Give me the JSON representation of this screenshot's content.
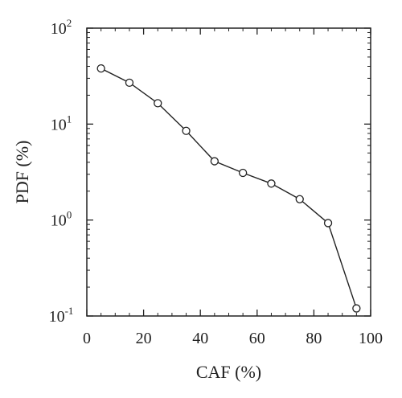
{
  "chart_data": {
    "type": "line",
    "title": "",
    "xlabel": "CAF (%)",
    "ylabel": "PDF (%)",
    "xlim": [
      0,
      100
    ],
    "ylim": [
      0.1,
      100
    ],
    "yscale": "log",
    "grid": false,
    "x_ticks": [
      {
        "value": 0,
        "label": "0"
      },
      {
        "value": 20,
        "label": "20"
      },
      {
        "value": 40,
        "label": "40"
      },
      {
        "value": 60,
        "label": "60"
      },
      {
        "value": 80,
        "label": "80"
      },
      {
        "value": 100,
        "label": "100"
      }
    ],
    "y_ticks": [
      {
        "value": 0.1,
        "base": "10",
        "exponent": "-1"
      },
      {
        "value": 1,
        "base": "10",
        "exponent": "0"
      },
      {
        "value": 10,
        "base": "10",
        "exponent": "1"
      },
      {
        "value": 100,
        "base": "10",
        "exponent": "2"
      }
    ],
    "series": [
      {
        "marker": "open-circle",
        "color": "#222222",
        "x": [
          5,
          15,
          25,
          35,
          45,
          55,
          65,
          75,
          85,
          95
        ],
        "y": [
          38,
          27,
          16.5,
          8.5,
          4.1,
          3.1,
          2.4,
          1.65,
          0.93,
          0.12
        ]
      }
    ]
  }
}
